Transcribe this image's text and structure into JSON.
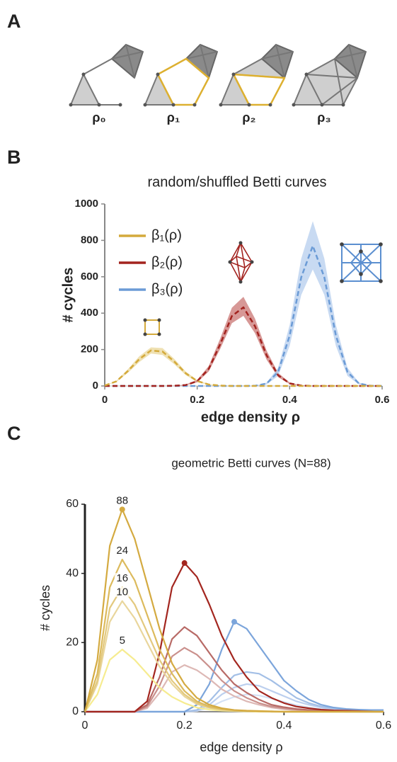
{
  "panel_labels": [
    "A",
    "B",
    "C"
  ],
  "panel_a": {
    "labels": [
      "ρ₀",
      "ρ₁",
      "ρ₂",
      "ρ₃"
    ]
  },
  "chart_data": [
    {
      "type": "line",
      "title": "random/shuffled Betti curves",
      "x_label": "edge density ρ",
      "y_label": "# cycles",
      "x": [
        0,
        0.025,
        0.05,
        0.075,
        0.1,
        0.125,
        0.15,
        0.175,
        0.2,
        0.225,
        0.25,
        0.275,
        0.3,
        0.325,
        0.35,
        0.375,
        0.4,
        0.425,
        0.45,
        0.475,
        0.5,
        0.525,
        0.55,
        0.575,
        0.6
      ],
      "xlim": [
        0,
        0.6
      ],
      "ylim": [
        0,
        1000
      ],
      "xticks": [
        0,
        0.2,
        0.4,
        0.6
      ],
      "yticks": [
        0,
        200,
        400,
        600,
        800,
        1000
      ],
      "legend": "upper left",
      "line_style": "dashed",
      "series": [
        {
          "name": "β₁(ρ)",
          "color": "#d4aa3c",
          "band_color": "#ead79a",
          "values": [
            2,
            25,
            82,
            148,
            195,
            189,
            135,
            70,
            27,
            8,
            2,
            0,
            0,
            0,
            0,
            0,
            0,
            0,
            0,
            0,
            0,
            0,
            0,
            0,
            0
          ],
          "lower": [
            1,
            22,
            72,
            132,
            178,
            170,
            120,
            60,
            22,
            6,
            1,
            0,
            0,
            0,
            0,
            0,
            0,
            0,
            0,
            0,
            0,
            0,
            0,
            0,
            0
          ],
          "upper": [
            3,
            28,
            92,
            164,
            212,
            208,
            150,
            80,
            32,
            10,
            3,
            0,
            0,
            0,
            0,
            0,
            0,
            0,
            0,
            0,
            0,
            0,
            0,
            0,
            0
          ]
        },
        {
          "name": "β₂(ρ)",
          "color": "#a3231f",
          "band_color": "#c97673",
          "values": [
            0,
            0,
            0,
            0,
            0,
            0,
            1,
            5,
            26,
            94,
            231,
            384,
            432,
            328,
            169,
            59,
            14,
            2,
            0,
            0,
            0,
            0,
            0,
            0,
            0
          ],
          "lower": [
            0,
            0,
            0,
            0,
            0,
            0,
            0,
            3,
            20,
            80,
            205,
            345,
            385,
            290,
            145,
            48,
            10,
            1,
            0,
            0,
            0,
            0,
            0,
            0,
            0
          ],
          "upper": [
            0,
            0,
            0,
            0,
            0,
            0,
            2,
            8,
            33,
            110,
            262,
            430,
            490,
            370,
            195,
            72,
            19,
            4,
            0,
            0,
            0,
            0,
            0,
            0,
            0
          ]
        },
        {
          "name": "β₃(ρ)",
          "color": "#6b9bd6",
          "band_color": "#b5cdee",
          "values": [
            0,
            0,
            0,
            0,
            0,
            0,
            0,
            0,
            0,
            0,
            0,
            0,
            0,
            1,
            13,
            77,
            277,
            597,
            770,
            597,
            277,
            77,
            13,
            1,
            0
          ],
          "lower": [
            0,
            0,
            0,
            0,
            0,
            0,
            0,
            0,
            0,
            0,
            0,
            0,
            0,
            0,
            8,
            55,
            220,
            500,
            640,
            500,
            220,
            55,
            8,
            0,
            0
          ],
          "upper": [
            0,
            0,
            0,
            0,
            0,
            0,
            0,
            0,
            0,
            0,
            0,
            0,
            0,
            2,
            18,
            100,
            335,
            700,
            905,
            700,
            335,
            100,
            18,
            3,
            0
          ]
        }
      ]
    },
    {
      "type": "line",
      "title": "geometric Betti curves (N=88)",
      "x_label": "edge density ρ",
      "y_label": "# cycles",
      "x": [
        0,
        0.025,
        0.05,
        0.075,
        0.1,
        0.125,
        0.15,
        0.175,
        0.2,
        0.225,
        0.25,
        0.275,
        0.3,
        0.325,
        0.35,
        0.375,
        0.4,
        0.425,
        0.45,
        0.475,
        0.5,
        0.525,
        0.55,
        0.575,
        0.6
      ],
      "xlim": [
        0,
        0.6
      ],
      "ylim": [
        0,
        60
      ],
      "xticks": [
        0,
        0.2,
        0.4,
        0.6
      ],
      "yticks": [
        0,
        20,
        40,
        60
      ],
      "series": [
        {
          "label": "88",
          "color": "#d4aa40",
          "peak_marker": true,
          "values": [
            0,
            15,
            48,
            58.5,
            50,
            37,
            24,
            14,
            8,
            4,
            2,
            1,
            0.5,
            0.3,
            0.2,
            0.1,
            0,
            0,
            0,
            0,
            0,
            0,
            0,
            0,
            0
          ]
        },
        {
          "label": "24",
          "color": "#dcba5c",
          "values": [
            0,
            11,
            36,
            44,
            38,
            28,
            18,
            11,
            6,
            3,
            1.5,
            0.8,
            0.4,
            0.2,
            0.1,
            0.1,
            0,
            0,
            0,
            0,
            0,
            0,
            0,
            0,
            0
          ]
        },
        {
          "label": "16",
          "color": "#e3c97e",
          "values": [
            0,
            9,
            30,
            36,
            31,
            23,
            15,
            9,
            5,
            2.5,
            1.2,
            0.6,
            0.3,
            0.2,
            0.1,
            0,
            0,
            0,
            0,
            0,
            0,
            0,
            0,
            0,
            0
          ]
        },
        {
          "label": "10",
          "color": "#e9d69c",
          "values": [
            0,
            8,
            26,
            32,
            27,
            20,
            13,
            8,
            4.4,
            2.2,
            1.1,
            0.5,
            0.3,
            0.2,
            0.1,
            0,
            0,
            0,
            0,
            0,
            0,
            0,
            0,
            0,
            0
          ]
        },
        {
          "label": "5",
          "color": "#f6ec90",
          "values": [
            0,
            5,
            15,
            18,
            15,
            11,
            7,
            4.3,
            2.5,
            1.2,
            0.6,
            0.3,
            0.2,
            0.1,
            0,
            0,
            0,
            0,
            0,
            0,
            0,
            0,
            0,
            0,
            0
          ]
        },
        {
          "color": "#a3261f",
          "peak_marker": true,
          "values": [
            0,
            0,
            0,
            0,
            0,
            3,
            17,
            36,
            43,
            39,
            31,
            22,
            15,
            10,
            6,
            4,
            2.5,
            1.5,
            1,
            0.6,
            0.4,
            0.3,
            0.2,
            0.1,
            0
          ]
        },
        {
          "color": "#b86a66",
          "values": [
            0,
            0,
            0,
            0,
            0,
            2,
            10,
            21,
            24.5,
            22,
            17,
            12,
            8,
            5.5,
            3.5,
            2,
            1.3,
            0.8,
            0.5,
            0.3,
            0.2,
            0.1,
            0,
            0,
            0
          ]
        },
        {
          "color": "#ca908c",
          "values": [
            0,
            0,
            0,
            0,
            0,
            1.5,
            7.5,
            16,
            18.5,
            16.5,
            13,
            9,
            6,
            4,
            2.5,
            1.5,
            1,
            0.6,
            0.4,
            0.2,
            0.1,
            0,
            0,
            0,
            0
          ]
        },
        {
          "color": "#ddb8b5",
          "values": [
            0,
            0,
            0,
            0,
            0,
            1,
            5.5,
            11.5,
            13.5,
            12,
            9.5,
            6.5,
            4.5,
            3,
            2,
            1.2,
            0.7,
            0.4,
            0.3,
            0.2,
            0.1,
            0,
            0,
            0,
            0
          ]
        },
        {
          "color": "#7ca5db",
          "peak_marker": true,
          "values": [
            0,
            0,
            0,
            0,
            0,
            0,
            0,
            0,
            0,
            2,
            8,
            18,
            26,
            24,
            19,
            14,
            9,
            6,
            3.5,
            2,
            1.2,
            0.8,
            0.6,
            0.5,
            0.5
          ]
        },
        {
          "color": "#a3bfe6",
          "values": [
            0,
            0,
            0,
            0,
            0,
            0,
            0,
            0,
            0,
            0.5,
            3,
            7,
            10.5,
            11.5,
            11,
            9,
            6.5,
            4,
            2.5,
            1.5,
            1,
            0.6,
            0.4,
            0.3,
            0.2
          ]
        },
        {
          "color": "#bccfee",
          "values": [
            0,
            0,
            0,
            0,
            0,
            0,
            0,
            0,
            0,
            0.3,
            2,
            5,
            7,
            8,
            7.5,
            6,
            4.5,
            3,
            2,
            1.2,
            0.7,
            0.4,
            0.3,
            0.2,
            0.1
          ]
        },
        {
          "color": "#d4e1f5",
          "values": [
            0,
            0,
            0,
            0,
            0,
            0,
            0,
            0,
            0,
            0.2,
            1.2,
            3,
            4.3,
            5,
            4.7,
            3.8,
            2.8,
            1.9,
            1.2,
            0.7,
            0.4,
            0.3,
            0.2,
            0.1,
            0.1
          ]
        }
      ]
    }
  ]
}
